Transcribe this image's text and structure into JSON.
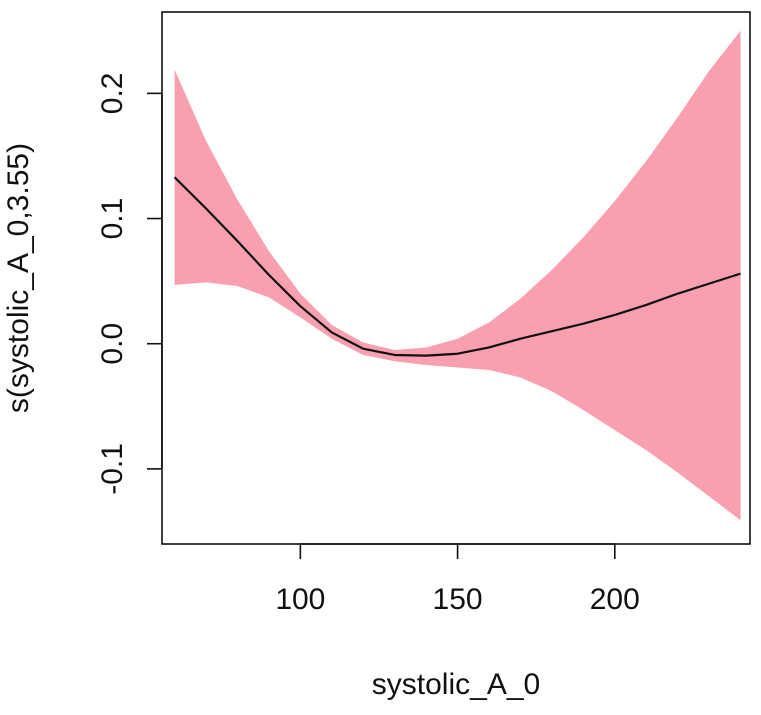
{
  "chart_data": {
    "type": "line",
    "title": "",
    "xlabel": "systolic_A_0",
    "ylabel": "s(systolic_A_0,3.55)",
    "xlim": [
      56,
      243
    ],
    "ylim": [
      -0.16,
      0.265
    ],
    "x_ticks": [
      100,
      150,
      200
    ],
    "y_ticks": [
      -0.1,
      0.0,
      0.1,
      0.2
    ],
    "x_tick_labels": [
      "100",
      "150",
      "200"
    ],
    "y_tick_labels": [
      "-0.1",
      "0.0",
      "0.1",
      "0.2"
    ],
    "grid": false,
    "colors": {
      "band": "#f8a0b0",
      "line": "#111111"
    },
    "series": [
      {
        "name": "fit",
        "x": [
          60,
          70,
          80,
          90,
          100,
          110,
          120,
          130,
          140,
          150,
          160,
          170,
          180,
          190,
          200,
          210,
          220,
          230,
          240
        ],
        "values": [
          0.133,
          0.108,
          0.082,
          0.055,
          0.03,
          0.009,
          -0.004,
          -0.009,
          -0.0095,
          -0.008,
          -0.003,
          0.004,
          0.01,
          0.016,
          0.023,
          0.031,
          0.04,
          0.048,
          0.056
        ]
      },
      {
        "name": "upper-band",
        "x": [
          60,
          70,
          80,
          90,
          100,
          110,
          120,
          130,
          140,
          150,
          160,
          170,
          180,
          190,
          200,
          210,
          220,
          230,
          240
        ],
        "values": [
          0.219,
          0.162,
          0.115,
          0.074,
          0.04,
          0.015,
          0.001,
          -0.005,
          -0.003,
          0.004,
          0.017,
          0.036,
          0.059,
          0.085,
          0.114,
          0.146,
          0.181,
          0.218,
          0.25
        ]
      },
      {
        "name": "lower-band",
        "x": [
          60,
          70,
          80,
          90,
          100,
          110,
          120,
          130,
          140,
          150,
          160,
          170,
          180,
          190,
          200,
          210,
          220,
          230,
          240
        ],
        "values": [
          0.047,
          0.049,
          0.046,
          0.037,
          0.021,
          0.004,
          -0.009,
          -0.014,
          -0.017,
          -0.019,
          -0.021,
          -0.027,
          -0.038,
          -0.053,
          -0.069,
          -0.085,
          -0.103,
          -0.122,
          -0.141
        ]
      }
    ]
  }
}
